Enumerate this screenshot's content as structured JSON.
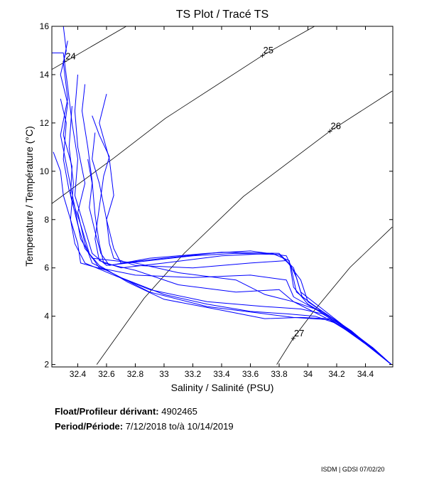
{
  "chart_data": {
    "type": "line",
    "title": "TS Plot / Tracé TS",
    "xlabel": "Salinity / Salinité (PSU)",
    "ylabel": "Temperature / Température (°C)",
    "xlim": [
      32.22,
      34.59
    ],
    "ylim": [
      1.9,
      16
    ],
    "xticks": [
      32.4,
      32.6,
      32.8,
      33,
      33.2,
      33.4,
      33.6,
      33.8,
      34,
      34.2,
      34.4
    ],
    "xtick_labels": [
      "32.4",
      "32.6",
      "32.8",
      "33",
      "33.2",
      "33.4",
      "33.6",
      "33.8",
      "34",
      "34.2",
      "34.4"
    ],
    "yticks": [
      2,
      4,
      6,
      8,
      10,
      12,
      14,
      16
    ],
    "ytick_labels": [
      "2",
      "4",
      "6",
      "8",
      "10",
      "12",
      "14",
      "16"
    ],
    "grid": false,
    "series_color": "#0000ff",
    "contour_color": "#000000",
    "density_contours": [
      {
        "label": "24",
        "label_at": [
          32.31,
          14.55
        ],
        "points": [
          [
            32.219,
            14.21
          ],
          [
            32.737,
            16.0
          ]
        ]
      },
      {
        "label": "25",
        "label_at": [
          33.684,
          14.79
        ],
        "points": [
          [
            32.219,
            8.66
          ],
          [
            32.647,
            10.53
          ],
          [
            33.009,
            12.19
          ],
          [
            33.684,
            14.79
          ],
          [
            34.046,
            16.0
          ]
        ]
      },
      {
        "label": "26",
        "label_at": [
          34.153,
          11.66
        ],
        "points": [
          [
            32.532,
            2.0
          ],
          [
            32.861,
            4.74
          ],
          [
            33.141,
            6.61
          ],
          [
            33.552,
            8.96
          ],
          [
            34.153,
            11.66
          ],
          [
            34.586,
            13.32
          ]
        ]
      },
      {
        "label": "27",
        "label_at": [
          33.898,
          3.08
        ],
        "points": [
          [
            33.783,
            2.0
          ],
          [
            33.898,
            3.08
          ],
          [
            34.046,
            4.25
          ],
          [
            34.293,
            6.02
          ],
          [
            34.586,
            7.69
          ]
        ]
      }
    ],
    "series": [
      {
        "name": "profile",
        "points": [
          [
            32.3,
            16.0
          ],
          [
            32.32,
            15.0
          ],
          [
            32.28,
            14.0
          ],
          [
            32.33,
            12.8
          ],
          [
            32.3,
            11.5
          ],
          [
            32.36,
            10.2
          ],
          [
            32.35,
            9.0
          ],
          [
            32.4,
            7.8
          ],
          [
            32.45,
            6.8
          ],
          [
            32.55,
            6.1
          ],
          [
            32.75,
            5.4
          ],
          [
            33.0,
            4.7
          ],
          [
            33.4,
            4.25
          ],
          [
            33.7,
            3.9
          ],
          [
            33.95,
            3.95
          ],
          [
            34.15,
            3.9
          ],
          [
            34.3,
            3.3
          ],
          [
            34.45,
            2.7
          ],
          [
            34.58,
            2.0
          ]
        ]
      },
      {
        "name": "profile",
        "points": [
          [
            32.22,
            14.9
          ],
          [
            32.3,
            14.9
          ],
          [
            32.33,
            13.5
          ],
          [
            32.36,
            12.0
          ],
          [
            32.4,
            10.5
          ],
          [
            32.38,
            9.0
          ],
          [
            32.45,
            7.6
          ],
          [
            32.5,
            6.6
          ],
          [
            32.6,
            6.1
          ],
          [
            32.9,
            6.3
          ],
          [
            33.2,
            6.5
          ],
          [
            33.5,
            6.6
          ],
          [
            33.8,
            6.55
          ],
          [
            33.88,
            6.1
          ],
          [
            33.92,
            5.0
          ],
          [
            34.05,
            4.4
          ],
          [
            34.2,
            3.8
          ],
          [
            34.4,
            2.9
          ],
          [
            34.58,
            2.0
          ]
        ]
      },
      {
        "name": "profile",
        "points": [
          [
            32.45,
            13.6
          ],
          [
            32.43,
            12.5
          ],
          [
            32.47,
            11.0
          ],
          [
            32.5,
            9.6
          ],
          [
            32.52,
            8.2
          ],
          [
            32.55,
            7.0
          ],
          [
            32.58,
            6.2
          ],
          [
            32.8,
            5.9
          ],
          [
            33.1,
            5.3
          ],
          [
            33.5,
            5.0
          ],
          [
            33.8,
            5.1
          ],
          [
            33.9,
            4.6
          ],
          [
            34.0,
            4.3
          ],
          [
            34.2,
            3.7
          ],
          [
            34.4,
            2.85
          ],
          [
            34.58,
            2.0
          ]
        ]
      },
      {
        "name": "profile",
        "points": [
          [
            32.6,
            13.2
          ],
          [
            32.55,
            12.0
          ],
          [
            32.62,
            10.5
          ],
          [
            32.65,
            9.0
          ],
          [
            32.6,
            8.0
          ],
          [
            32.65,
            6.8
          ],
          [
            32.7,
            6.2
          ],
          [
            33.0,
            6.4
          ],
          [
            33.4,
            6.65
          ],
          [
            33.8,
            6.6
          ],
          [
            33.9,
            6.0
          ],
          [
            33.95,
            5.0
          ],
          [
            34.1,
            4.3
          ],
          [
            34.25,
            3.6
          ],
          [
            34.45,
            2.7
          ],
          [
            34.58,
            2.0
          ]
        ]
      },
      {
        "name": "profile",
        "points": [
          [
            32.23,
            10.8
          ],
          [
            32.28,
            10.0
          ],
          [
            32.3,
            9.0
          ],
          [
            32.35,
            8.0
          ],
          [
            32.4,
            7.0
          ],
          [
            32.42,
            6.2
          ],
          [
            32.6,
            5.9
          ],
          [
            32.9,
            5.0
          ],
          [
            33.3,
            4.4
          ],
          [
            33.7,
            4.1
          ],
          [
            33.9,
            3.95
          ],
          [
            34.15,
            3.85
          ],
          [
            34.3,
            3.3
          ],
          [
            34.45,
            2.7
          ],
          [
            34.58,
            2.0
          ]
        ]
      },
      {
        "name": "profile",
        "points": [
          [
            32.28,
            13.0
          ],
          [
            32.32,
            12.0
          ],
          [
            32.3,
            10.5
          ],
          [
            32.34,
            9.2
          ],
          [
            32.42,
            7.8
          ],
          [
            32.48,
            6.6
          ],
          [
            32.55,
            6.0
          ],
          [
            32.8,
            5.7
          ],
          [
            33.2,
            5.6
          ],
          [
            33.6,
            5.7
          ],
          [
            33.85,
            5.5
          ],
          [
            33.9,
            4.8
          ],
          [
            34.05,
            4.3
          ],
          [
            34.2,
            3.75
          ],
          [
            34.4,
            2.9
          ],
          [
            34.58,
            2.0
          ]
        ]
      },
      {
        "name": "profile",
        "points": [
          [
            32.5,
            12.3
          ],
          [
            32.55,
            11.5
          ],
          [
            32.62,
            10.6
          ],
          [
            32.58,
            9.8
          ],
          [
            32.55,
            8.5
          ],
          [
            32.52,
            7.2
          ],
          [
            32.55,
            6.3
          ],
          [
            32.7,
            6.0
          ],
          [
            33.0,
            6.2
          ],
          [
            33.4,
            6.5
          ],
          [
            33.75,
            6.6
          ],
          [
            33.87,
            6.3
          ],
          [
            33.9,
            5.2
          ],
          [
            34.0,
            4.5
          ],
          [
            34.2,
            3.8
          ],
          [
            34.4,
            2.9
          ],
          [
            34.58,
            2.0
          ]
        ]
      },
      {
        "name": "profile",
        "points": [
          [
            32.4,
            14.0
          ],
          [
            32.38,
            12.5
          ],
          [
            32.4,
            11.0
          ],
          [
            32.45,
            9.5
          ],
          [
            32.4,
            8.3
          ],
          [
            32.45,
            7.0
          ],
          [
            32.5,
            6.2
          ],
          [
            32.7,
            5.6
          ],
          [
            33.0,
            4.9
          ],
          [
            33.3,
            4.5
          ],
          [
            33.6,
            4.2
          ],
          [
            33.85,
            4.1
          ],
          [
            34.05,
            4.0
          ],
          [
            34.2,
            3.7
          ],
          [
            34.4,
            2.9
          ],
          [
            34.58,
            2.0
          ]
        ]
      },
      {
        "name": "profile",
        "points": [
          [
            32.33,
            15.4
          ],
          [
            32.3,
            14.5
          ],
          [
            32.33,
            13.0
          ],
          [
            32.28,
            11.5
          ],
          [
            32.33,
            10.0
          ],
          [
            32.38,
            8.5
          ],
          [
            32.42,
            7.2
          ],
          [
            32.5,
            6.4
          ],
          [
            32.8,
            6.2
          ],
          [
            33.1,
            5.8
          ],
          [
            33.5,
            5.5
          ],
          [
            33.7,
            4.9
          ],
          [
            33.9,
            4.6
          ],
          [
            34.1,
            4.2
          ],
          [
            34.3,
            3.4
          ],
          [
            34.58,
            2.0
          ]
        ]
      },
      {
        "name": "profile",
        "points": [
          [
            32.52,
            11.6
          ],
          [
            32.5,
            10.5
          ],
          [
            32.55,
            9.5
          ],
          [
            32.6,
            8.0
          ],
          [
            32.62,
            7.0
          ],
          [
            32.65,
            6.4
          ],
          [
            32.8,
            6.1
          ],
          [
            33.2,
            6.0
          ],
          [
            33.6,
            6.2
          ],
          [
            33.85,
            6.3
          ],
          [
            33.95,
            5.5
          ],
          [
            34.0,
            4.6
          ],
          [
            34.15,
            4.0
          ],
          [
            34.35,
            3.1
          ],
          [
            34.58,
            2.0
          ]
        ]
      },
      {
        "name": "profile",
        "points": [
          [
            32.36,
            12.7
          ],
          [
            32.34,
            11.0
          ],
          [
            32.37,
            9.5
          ],
          [
            32.35,
            8.0
          ],
          [
            32.38,
            7.0
          ],
          [
            32.45,
            6.2
          ],
          [
            32.65,
            5.7
          ],
          [
            32.9,
            5.1
          ],
          [
            33.3,
            4.6
          ],
          [
            33.7,
            4.4
          ],
          [
            33.95,
            4.3
          ],
          [
            34.1,
            4.1
          ],
          [
            34.3,
            3.4
          ],
          [
            34.58,
            2.0
          ]
        ]
      },
      {
        "name": "profile",
        "points": [
          [
            32.47,
            10.5
          ],
          [
            32.5,
            9.5
          ],
          [
            32.48,
            8.5
          ],
          [
            32.52,
            7.5
          ],
          [
            32.56,
            6.6
          ],
          [
            32.62,
            6.1
          ],
          [
            32.9,
            6.4
          ],
          [
            33.3,
            6.6
          ],
          [
            33.6,
            6.7
          ],
          [
            33.85,
            6.5
          ],
          [
            33.92,
            5.6
          ],
          [
            33.96,
            4.8
          ],
          [
            34.1,
            4.2
          ],
          [
            34.3,
            3.4
          ],
          [
            34.58,
            2.0
          ]
        ]
      }
    ]
  },
  "info": {
    "float_label": "Float/Profileur dérivant:",
    "float_id": "4902465",
    "period_label": "Period/Période:",
    "period_start": "7/12/2018",
    "period_sep": "to/à",
    "period_end": "10/14/2019"
  },
  "credit": "ISDM | GDSI  07/02/20"
}
